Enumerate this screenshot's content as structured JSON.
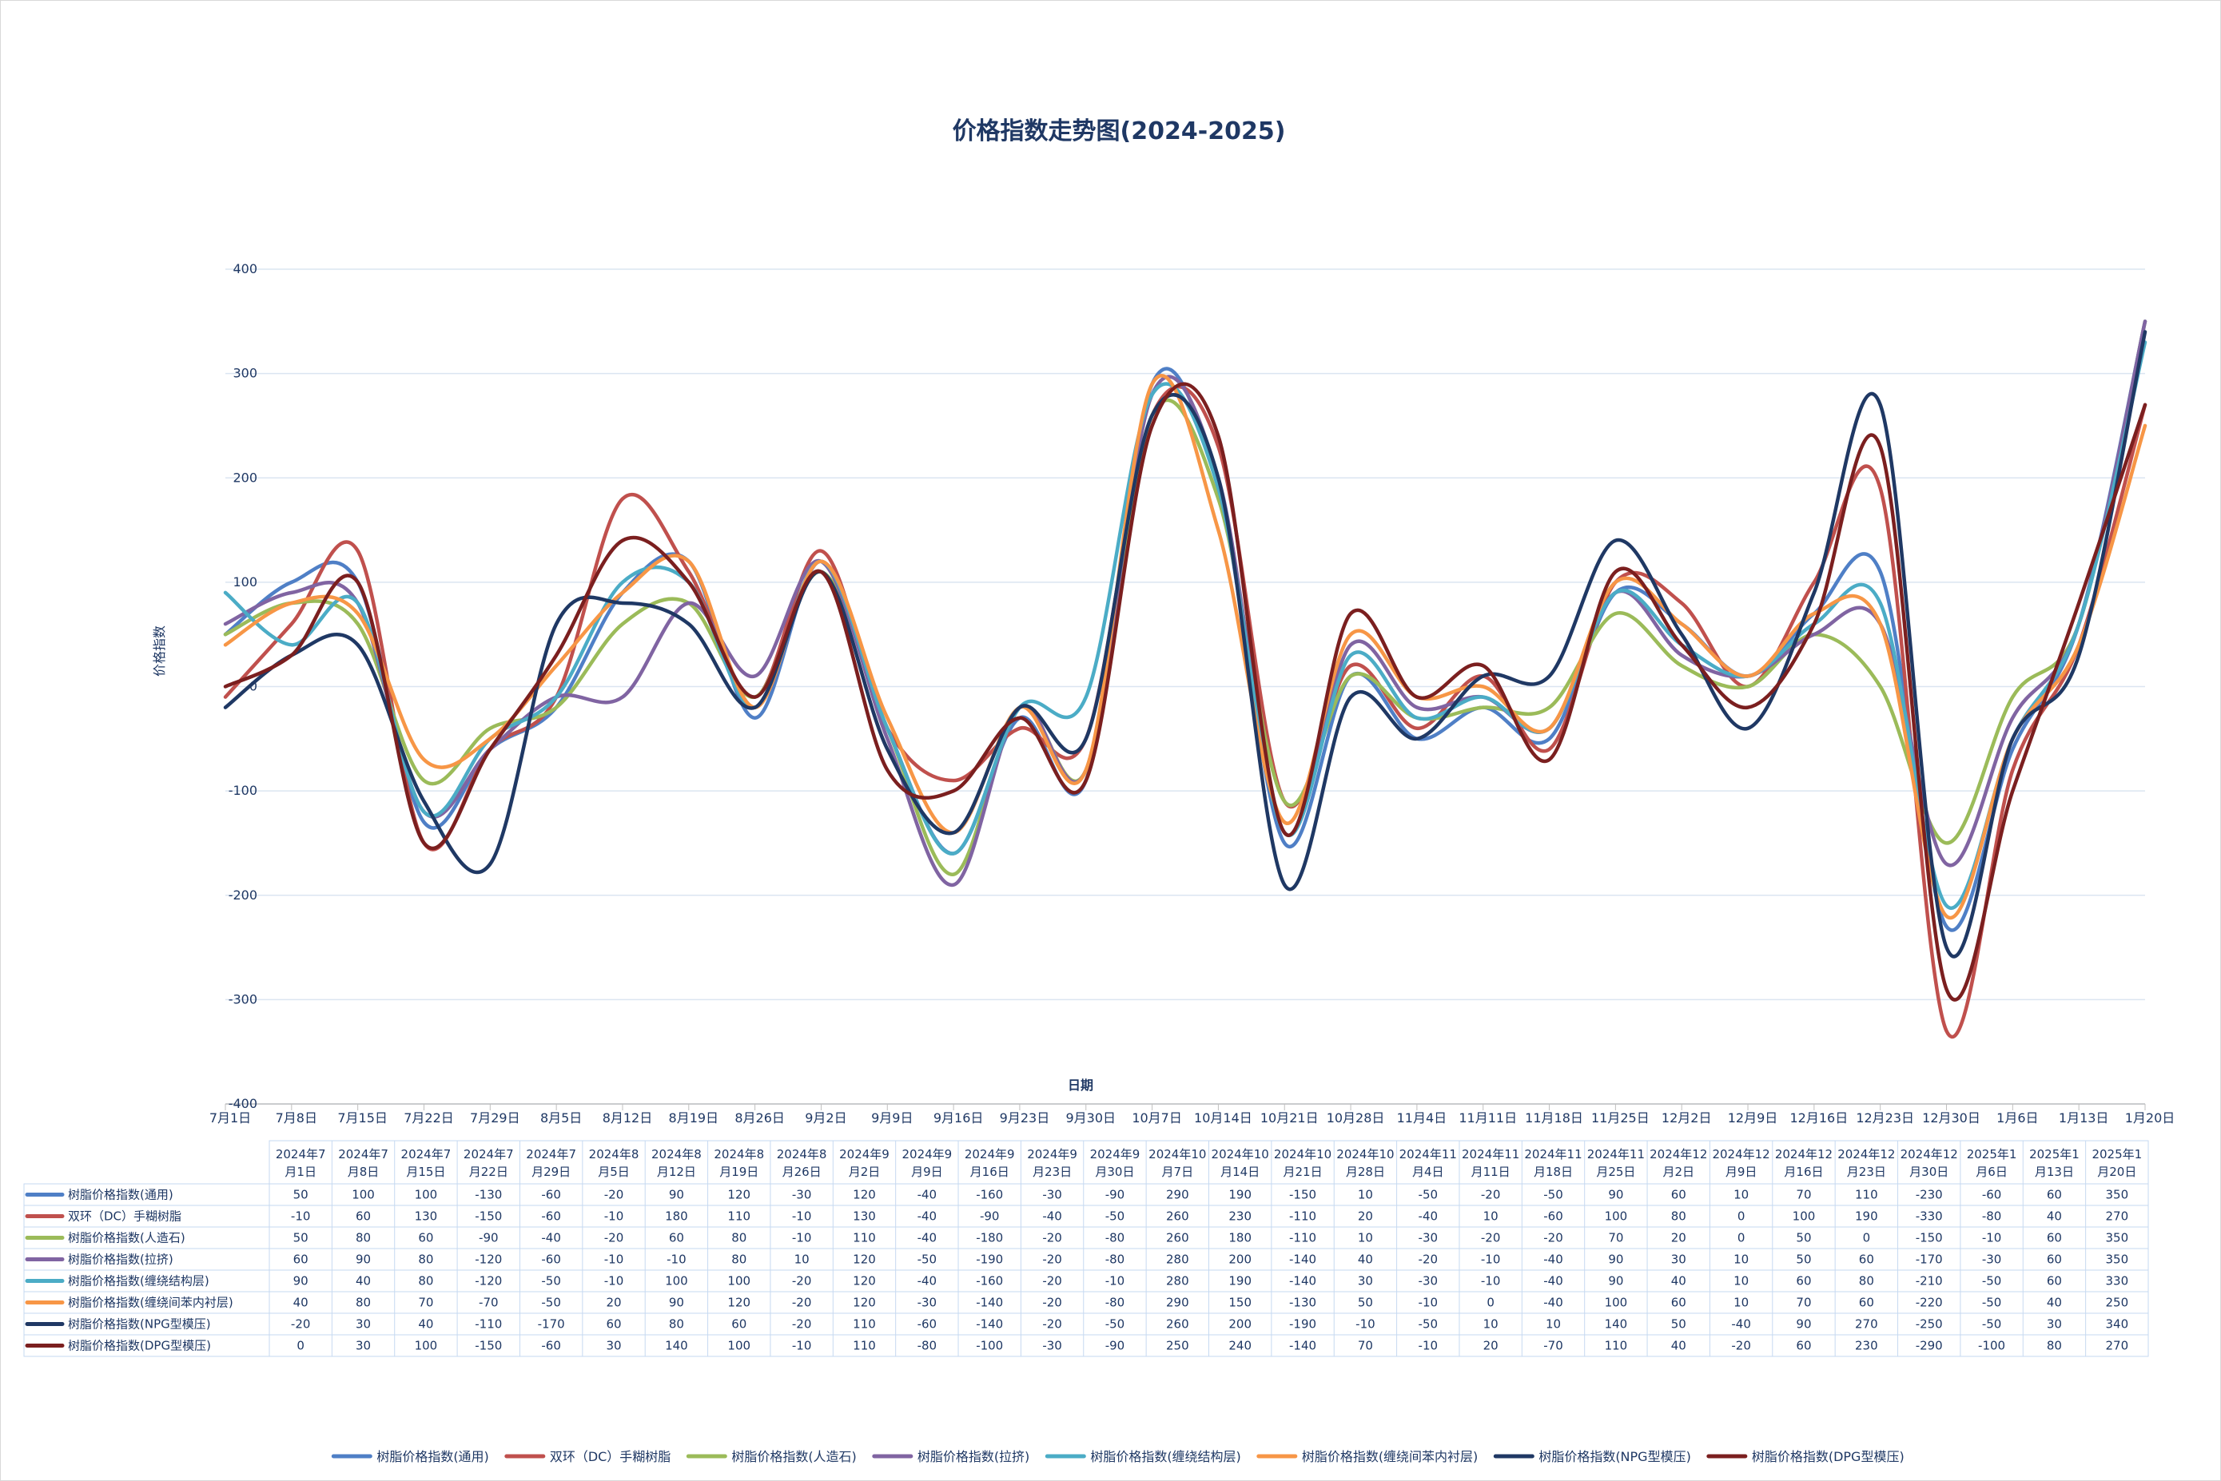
{
  "chart_data": {
    "type": "line",
    "title": "价格指数走势图(2024-2025)",
    "xlabel": "日期",
    "ylabel": "价格指数",
    "ylim": [
      -400,
      400
    ],
    "ytick_step": 100,
    "grid": true,
    "legend_position": "bottom",
    "smooth": true,
    "categories": [
      "7月1日",
      "7月8日",
      "7月15日",
      "7月22日",
      "7月29日",
      "8月5日",
      "8月12日",
      "8月19日",
      "8月26日",
      "9月2日",
      "9月9日",
      "9月16日",
      "9月23日",
      "9月30日",
      "10月7日",
      "10月14日",
      "10月21日",
      "10月28日",
      "11月4日",
      "11月11日",
      "11月18日",
      "11月25日",
      "12月2日",
      "12月9日",
      "12月16日",
      "12月23日",
      "12月30日",
      "1月6日",
      "1月13日",
      "1月20日"
    ],
    "table_headers": [
      [
        "2024年7",
        "月1日"
      ],
      [
        "2024年7",
        "月8日"
      ],
      [
        "2024年7",
        "月15日"
      ],
      [
        "2024年7",
        "月22日"
      ],
      [
        "2024年7",
        "月29日"
      ],
      [
        "2024年8",
        "月5日"
      ],
      [
        "2024年8",
        "月12日"
      ],
      [
        "2024年8",
        "月19日"
      ],
      [
        "2024年8",
        "月26日"
      ],
      [
        "2024年9",
        "月2日"
      ],
      [
        "2024年9",
        "月9日"
      ],
      [
        "2024年9",
        "月16日"
      ],
      [
        "2024年9",
        "月23日"
      ],
      [
        "2024年9",
        "月30日"
      ],
      [
        "2024年10",
        "月7日"
      ],
      [
        "2024年10",
        "月14日"
      ],
      [
        "2024年10",
        "月21日"
      ],
      [
        "2024年10",
        "月28日"
      ],
      [
        "2024年11",
        "月4日"
      ],
      [
        "2024年11",
        "月11日"
      ],
      [
        "2024年11",
        "月18日"
      ],
      [
        "2024年11",
        "月25日"
      ],
      [
        "2024年12",
        "月2日"
      ],
      [
        "2024年12",
        "月9日"
      ],
      [
        "2024年12",
        "月16日"
      ],
      [
        "2024年12",
        "月23日"
      ],
      [
        "2024年12",
        "月30日"
      ],
      [
        "2025年1",
        "月6日"
      ],
      [
        "2025年1",
        "月13日"
      ],
      [
        "2025年1",
        "月20日"
      ]
    ],
    "series": [
      {
        "name": "树脂价格指数(通用)",
        "color": "#4f7fc6",
        "values": [
          50,
          100,
          100,
          -130,
          -60,
          -20,
          90,
          120,
          -30,
          120,
          -40,
          -160,
          -30,
          -90,
          290,
          190,
          -150,
          10,
          -50,
          -20,
          -50,
          90,
          60,
          10,
          70,
          110,
          -230,
          -60,
          60,
          350
        ]
      },
      {
        "name": "双环（DC）手糊树脂",
        "color": "#c0504d",
        "values": [
          -10,
          60,
          130,
          -150,
          -60,
          -10,
          180,
          110,
          -10,
          130,
          -40,
          -90,
          -40,
          -50,
          260,
          230,
          -110,
          20,
          -40,
          10,
          -60,
          100,
          80,
          0,
          100,
          190,
          -330,
          -80,
          40,
          270
        ]
      },
      {
        "name": "树脂价格指数(人造石)",
        "color": "#9bbb59",
        "values": [
          50,
          80,
          60,
          -90,
          -40,
          -20,
          60,
          80,
          -10,
          110,
          -40,
          -180,
          -20,
          -80,
          260,
          180,
          -110,
          10,
          -30,
          -20,
          -20,
          70,
          20,
          0,
          50,
          0,
          -150,
          -10,
          60,
          350
        ]
      },
      {
        "name": "树脂价格指数(拉挤)",
        "color": "#8064a2",
        "values": [
          60,
          90,
          80,
          -120,
          -60,
          -10,
          -10,
          80,
          10,
          120,
          -50,
          -190,
          -20,
          -80,
          280,
          200,
          -140,
          40,
          -20,
          -10,
          -40,
          90,
          30,
          10,
          50,
          60,
          -170,
          -30,
          60,
          350
        ]
      },
      {
        "name": "树脂价格指数(缠绕结构层)",
        "color": "#4bacc6",
        "values": [
          90,
          40,
          80,
          -120,
          -50,
          -10,
          100,
          100,
          -20,
          120,
          -40,
          -160,
          -20,
          -10,
          280,
          190,
          -140,
          30,
          -30,
          -10,
          -40,
          90,
          40,
          10,
          60,
          80,
          -210,
          -50,
          60,
          330
        ]
      },
      {
        "name": "树脂价格指数(缠绕间苯内衬层)",
        "color": "#f79646",
        "values": [
          40,
          80,
          70,
          -70,
          -50,
          20,
          90,
          120,
          -20,
          120,
          -30,
          -140,
          -20,
          -80,
          290,
          150,
          -130,
          50,
          -10,
          0,
          -40,
          100,
          60,
          10,
          70,
          60,
          -220,
          -50,
          40,
          250
        ]
      },
      {
        "name": "树脂价格指数(NPG型模压)",
        "color": "#1f3864",
        "values": [
          -20,
          30,
          40,
          -110,
          -170,
          60,
          80,
          60,
          -20,
          110,
          -60,
          -140,
          -20,
          -50,
          260,
          200,
          -190,
          -10,
          -50,
          10,
          10,
          140,
          50,
          -40,
          90,
          270,
          -250,
          -50,
          30,
          340
        ]
      },
      {
        "name": "树脂价格指数(DPG型模压)",
        "color": "#7b1f1f",
        "values": [
          0,
          30,
          100,
          -150,
          -60,
          30,
          140,
          100,
          -10,
          110,
          -80,
          -100,
          -30,
          -90,
          250,
          240,
          -140,
          70,
          -10,
          20,
          -70,
          110,
          40,
          -20,
          60,
          230,
          -290,
          -100,
          80,
          270
        ]
      }
    ]
  }
}
